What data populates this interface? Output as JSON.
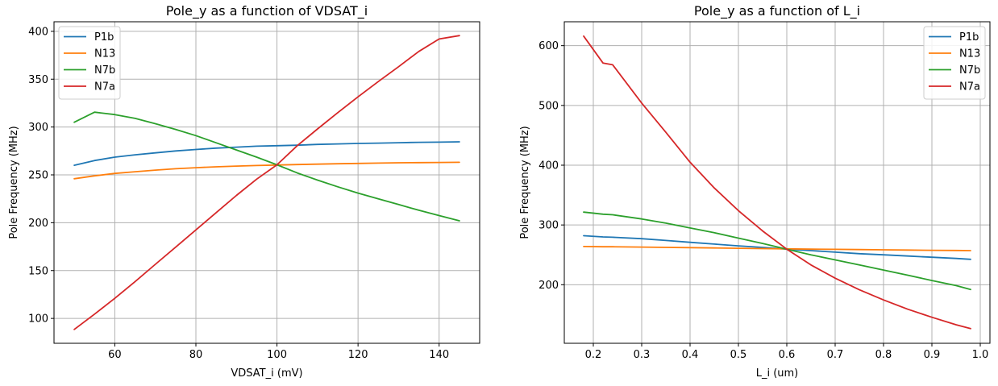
{
  "chart_data": [
    {
      "type": "line",
      "title": "Pole_y as a function of VDSAT_i",
      "xlabel": "VDSAT_i (mV)",
      "ylabel": "Pole Frequency (MHz)",
      "xlim": [
        45,
        150
      ],
      "ylim": [
        74,
        410
      ],
      "xticks": [
        60,
        80,
        100,
        120,
        140
      ],
      "yticks": [
        100,
        150,
        200,
        250,
        300,
        350,
        400
      ],
      "grid": true,
      "legend_position": "top-left",
      "x": [
        50,
        55,
        60,
        65,
        70,
        75,
        80,
        85,
        90,
        95,
        100,
        105,
        110,
        115,
        120,
        125,
        130,
        135,
        140,
        145
      ],
      "series": [
        {
          "name": "P1b",
          "color": "#1f77b4",
          "values": [
            260,
            265,
            268.5,
            271,
            273,
            275,
            276.5,
            278,
            279,
            280,
            280.5,
            281,
            281.8,
            282.3,
            282.8,
            283.2,
            283.6,
            284,
            284.2,
            284.5
          ]
        },
        {
          "name": "N13",
          "color": "#ff7f0e",
          "values": [
            246,
            249,
            251.5,
            253.3,
            255,
            256.4,
            257.5,
            258.4,
            259.2,
            259.8,
            260.3,
            260.8,
            261.2,
            261.6,
            262,
            262.3,
            262.6,
            262.8,
            263,
            263.1
          ]
        },
        {
          "name": "N7b",
          "color": "#2ca02c",
          "values": [
            305,
            315.5,
            313,
            309,
            303.5,
            297.5,
            291,
            283.5,
            276,
            268.5,
            260.5,
            252,
            244.5,
            237.5,
            231,
            225,
            219,
            213,
            207.5,
            202
          ]
        },
        {
          "name": "N7a",
          "color": "#d62728",
          "values": [
            88.5,
            104.5,
            121,
            138.5,
            156.5,
            174.5,
            192.5,
            210.5,
            228.5,
            245.5,
            260.5,
            280.5,
            298,
            315,
            331.5,
            347.5,
            363,
            379,
            392,
            395.5
          ]
        }
      ]
    },
    {
      "type": "line",
      "title": "Pole_y as a function of L_i",
      "xlabel": "L_i (um)",
      "ylabel": "Pole Frequency (MHz)",
      "xlim": [
        0.14,
        1.02
      ],
      "ylim": [
        102,
        640
      ],
      "xticks": [
        0.2,
        0.3,
        0.4,
        0.5,
        0.6,
        0.7,
        0.8,
        0.9,
        1.0
      ],
      "xtick_labels": [
        "0.2",
        "0.3",
        "0.4",
        "0.5",
        "0.6",
        "0.7",
        "0.8",
        "0.9",
        "1.0"
      ],
      "yticks": [
        200,
        300,
        400,
        500,
        600
      ],
      "grid": true,
      "legend_position": "top-right",
      "x": [
        0.18,
        0.22,
        0.24,
        0.3,
        0.35,
        0.4,
        0.45,
        0.5,
        0.55,
        0.6,
        0.65,
        0.7,
        0.75,
        0.8,
        0.85,
        0.9,
        0.95,
        0.98
      ],
      "series": [
        {
          "name": "P1b",
          "color": "#1f77b4",
          "values": [
            282,
            280,
            279.5,
            277,
            274,
            271,
            268,
            265,
            262.5,
            259.5,
            257,
            254.5,
            252,
            250,
            248,
            246,
            244,
            242.5
          ]
        },
        {
          "name": "N13",
          "color": "#ff7f0e",
          "values": [
            264,
            263.5,
            263.5,
            263,
            262.5,
            262,
            261.5,
            261,
            260.5,
            260,
            259.5,
            259.2,
            258.8,
            258.4,
            258,
            257.6,
            257.3,
            257
          ]
        },
        {
          "name": "N7b",
          "color": "#2ca02c",
          "values": [
            321.5,
            318,
            317,
            310,
            303,
            295,
            287,
            278,
            269,
            259.5,
            250,
            241.5,
            233,
            224.5,
            216,
            207,
            198.5,
            192
          ]
        },
        {
          "name": "N7a",
          "color": "#d62728",
          "values": [
            616,
            571,
            568,
            504,
            455,
            405,
            362,
            324,
            290,
            259.5,
            233,
            211,
            191.5,
            174.5,
            159,
            145.5,
            133,
            126.5
          ]
        }
      ]
    }
  ]
}
